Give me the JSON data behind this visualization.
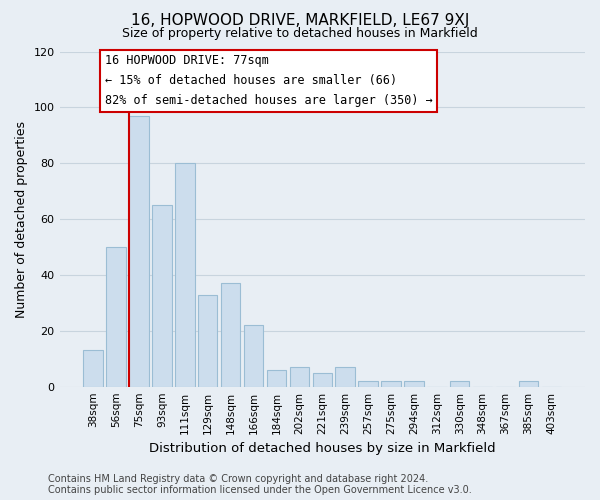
{
  "title": "16, HOPWOOD DRIVE, MARKFIELD, LE67 9XJ",
  "subtitle": "Size of property relative to detached houses in Markfield",
  "xlabel": "Distribution of detached houses by size in Markfield",
  "ylabel": "Number of detached properties",
  "footer_line1": "Contains HM Land Registry data © Crown copyright and database right 2024.",
  "footer_line2": "Contains public sector information licensed under the Open Government Licence v3.0.",
  "bar_labels": [
    "38sqm",
    "56sqm",
    "75sqm",
    "93sqm",
    "111sqm",
    "129sqm",
    "148sqm",
    "166sqm",
    "184sqm",
    "202sqm",
    "221sqm",
    "239sqm",
    "257sqm",
    "275sqm",
    "294sqm",
    "312sqm",
    "330sqm",
    "348sqm",
    "367sqm",
    "385sqm",
    "403sqm"
  ],
  "bar_values": [
    13,
    50,
    97,
    65,
    80,
    33,
    37,
    22,
    6,
    7,
    5,
    7,
    2,
    2,
    2,
    0,
    2,
    0,
    0,
    2,
    0
  ],
  "bar_color": "#ccdded",
  "bar_edge_color": "#9bbdd4",
  "highlight_color": "#cc0000",
  "ylim": [
    0,
    120
  ],
  "yticks": [
    0,
    20,
    40,
    60,
    80,
    100,
    120
  ],
  "annotation_title": "16 HOPWOOD DRIVE: 77sqm",
  "annotation_line2": "← 15% of detached houses are smaller (66)",
  "annotation_line3": "82% of semi-detached houses are larger (350) →",
  "bg_color": "#e8eef4",
  "plot_bg_color": "#e8eef4",
  "grid_color": "#c8d4de"
}
